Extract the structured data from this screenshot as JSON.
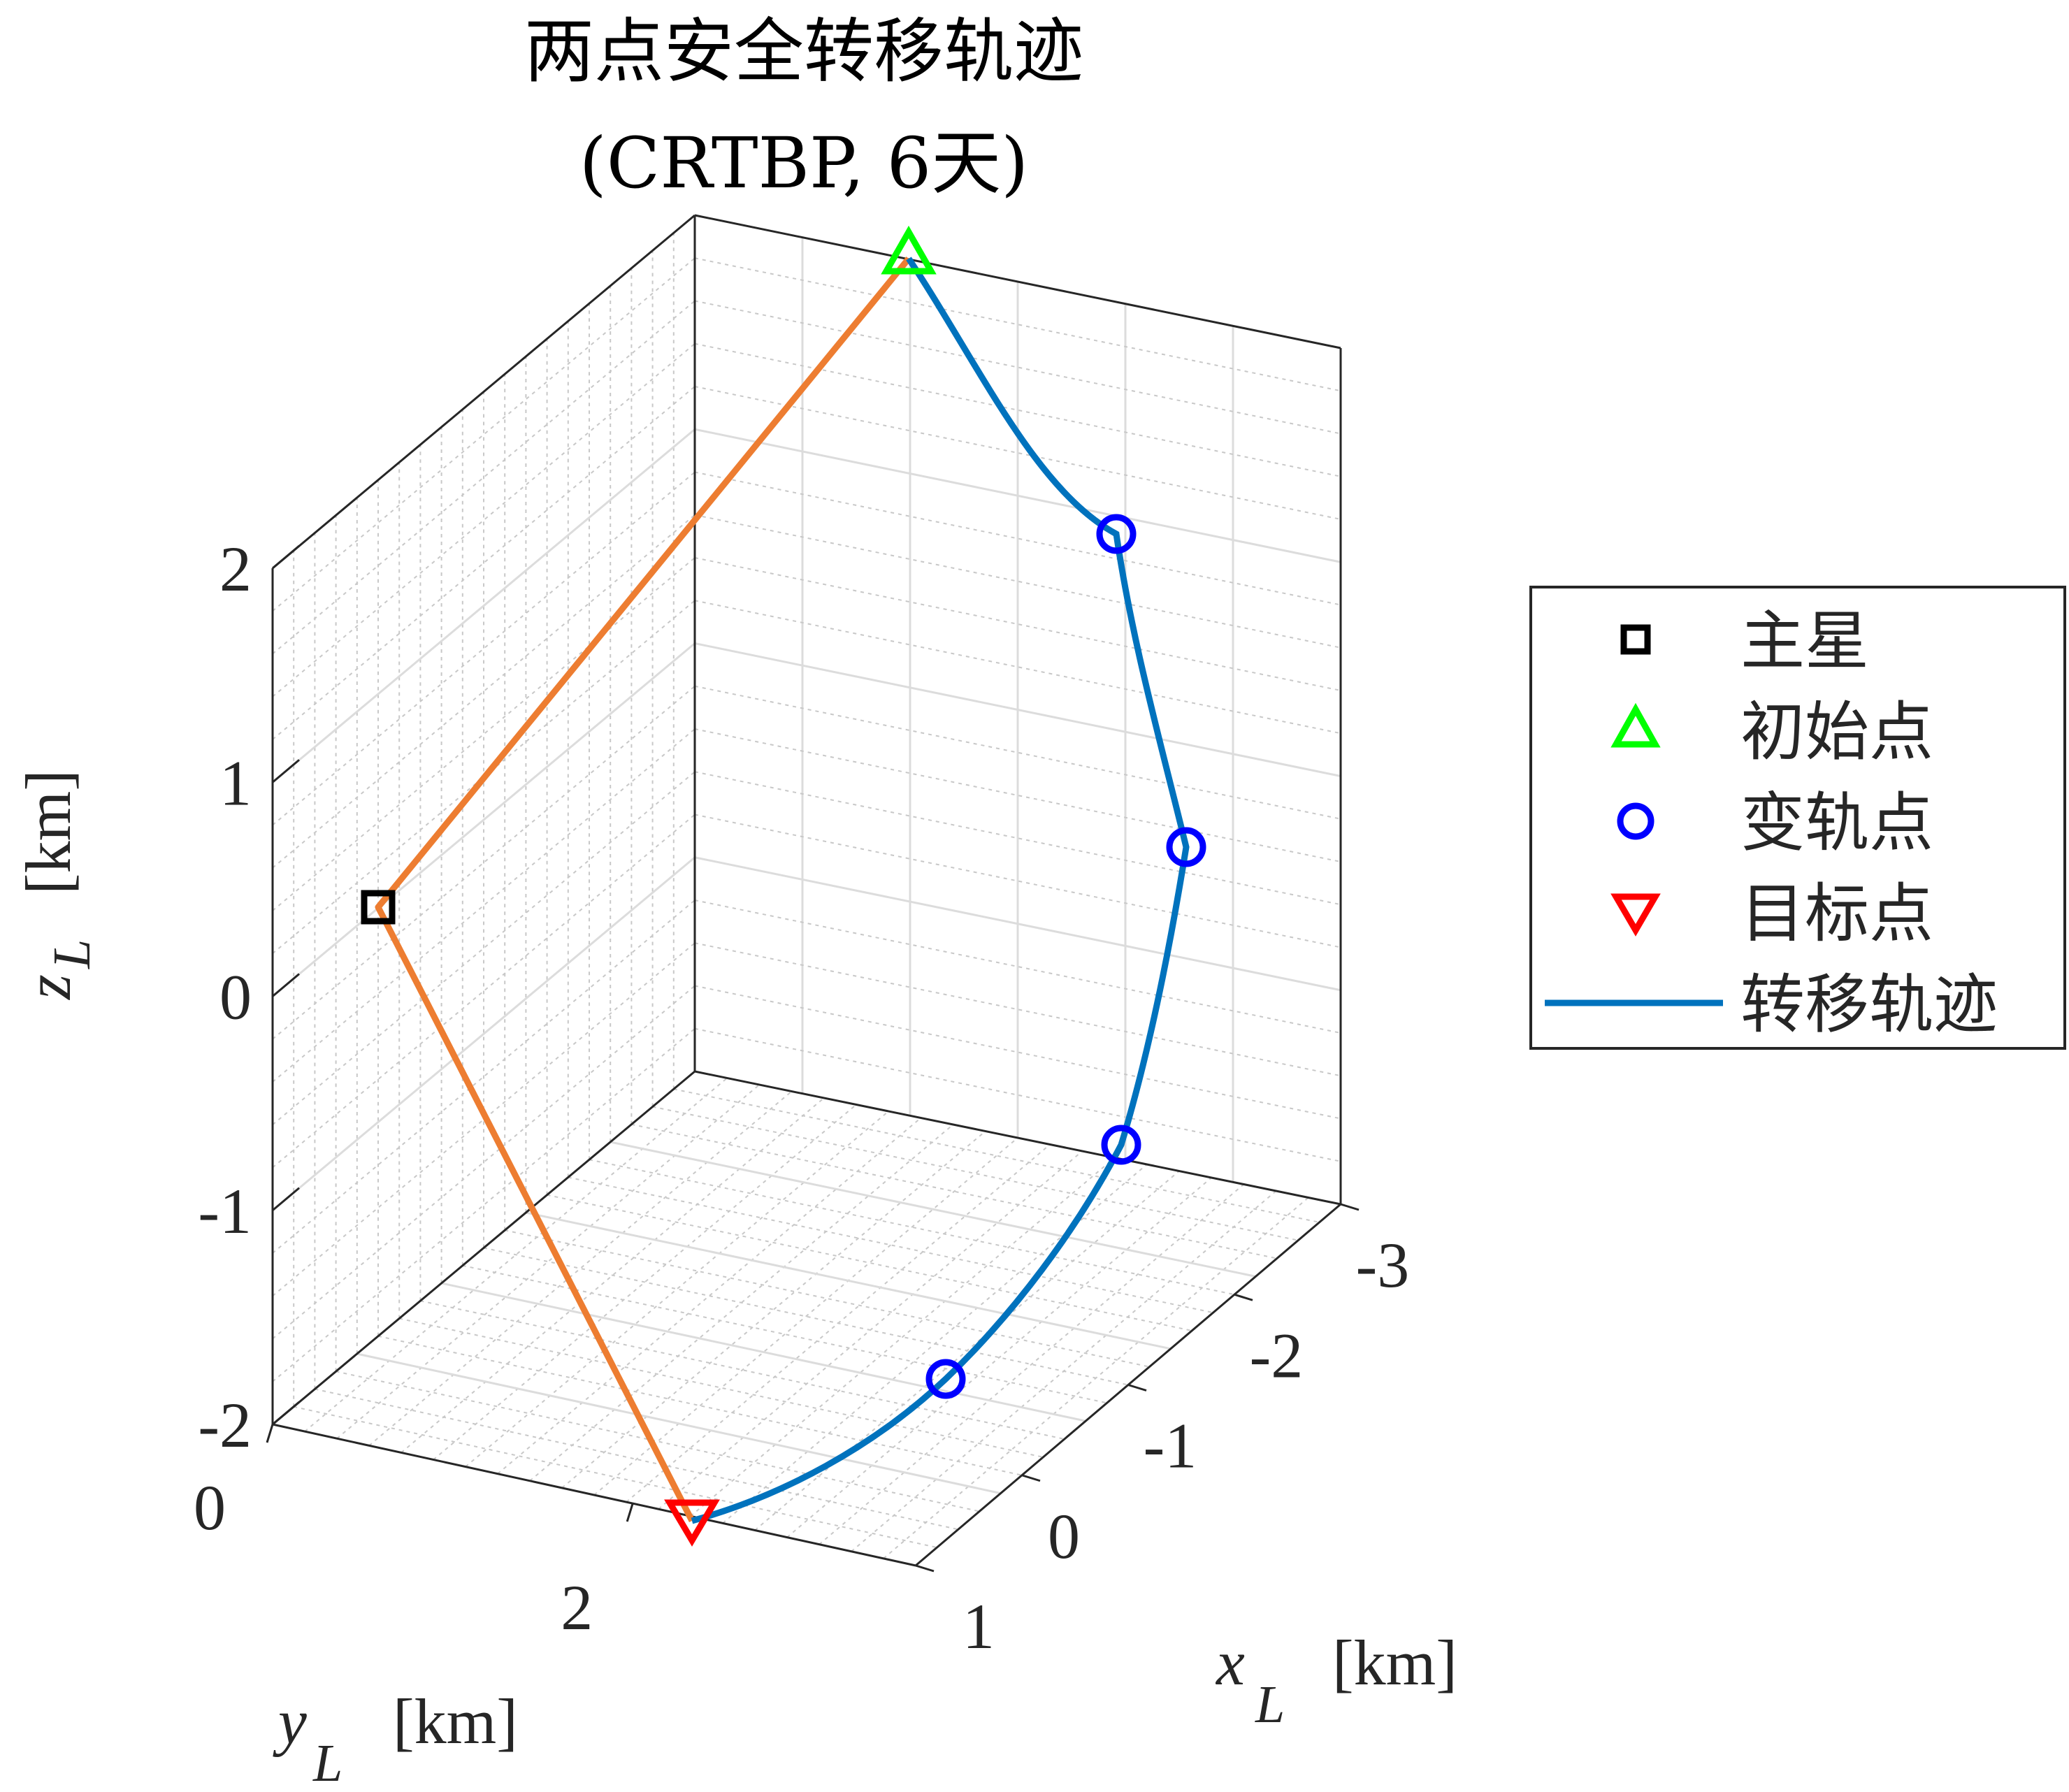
{
  "chart_data": {
    "type": "line3d",
    "title": [
      "两点安全转移轨迹",
      "(CRTBP, 6天)"
    ],
    "xlabel": "x",
    "xlabel_sub": "L",
    "xlabel_unit": "[km]",
    "ylabel": "y",
    "ylabel_sub": "L",
    "ylabel_unit": "[km]",
    "zlabel": "z",
    "zlabel_sub": "L",
    "zlabel_unit": "[km]",
    "x_ticks": [
      "1",
      "0",
      "-1",
      "-2",
      "-3"
    ],
    "y_ticks": [
      "0",
      "2"
    ],
    "z_ticks": [
      "2",
      "1",
      "0",
      "-1",
      "-2"
    ],
    "grid": true,
    "legend_placement": "outside-right",
    "legend": [
      {
        "label": "主星",
        "marker": "square",
        "color": "#000000"
      },
      {
        "label": "初始点",
        "marker": "triangle-up",
        "color": "#00ff00"
      },
      {
        "label": "变轨点",
        "marker": "circle",
        "color": "#0000ff"
      },
      {
        "label": "目标点",
        "marker": "triangle-down",
        "color": "#ff0000"
      },
      {
        "label": "转移轨迹",
        "marker": "line",
        "color": "#0072bd"
      }
    ],
    "colors": {
      "trajectory": "#0072bd",
      "connector": "#ed7d31",
      "main_star": "#000000",
      "initial": "#00ff00",
      "maneuver": "#0000ff",
      "target": "#ff0000"
    }
  }
}
